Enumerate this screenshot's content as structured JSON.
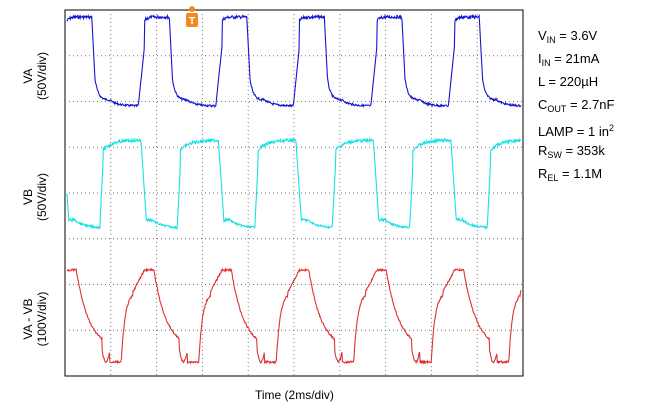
{
  "chart_data": {
    "type": "line",
    "xlabel": "Time (2ms/div)",
    "series": [
      {
        "name": "VA",
        "label": [
          "VA",
          "(50V/div)"
        ],
        "color": "#1414d2"
      },
      {
        "name": "VB",
        "label": [
          "VB",
          "(50V/div)"
        ],
        "color": "#19e0e6"
      },
      {
        "name": "VA - VB",
        "label": [
          "VA - VB",
          "(100V/div)"
        ],
        "color": "#e03030"
      }
    ],
    "grid": true,
    "trigger_marker": "T",
    "annotations": [
      {
        "base": "V",
        "sub": "IN",
        "rest": " = 3.6V"
      },
      {
        "base": "I",
        "sub": "IN",
        "rest": " = 21mA"
      },
      {
        "base": "L = 220µH",
        "sub": "",
        "rest": ""
      },
      {
        "base": "C",
        "sub": "OUT",
        "rest": " = 2.7nF"
      },
      {
        "base": "LAMP = 1 in",
        "sup": "2",
        "rest": ""
      },
      {
        "base": "R",
        "sub": "SW",
        "rest": " = 353k"
      },
      {
        "base": "R",
        "sub": "EL",
        "rest": " = 1.1M"
      }
    ]
  }
}
